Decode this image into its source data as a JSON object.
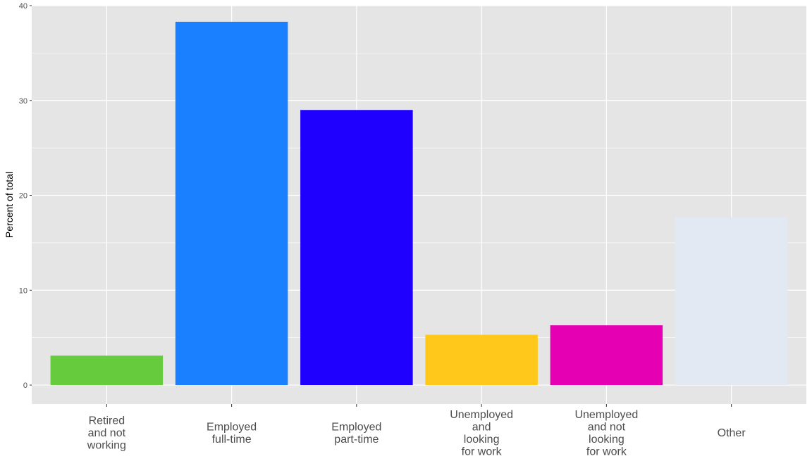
{
  "chart_data": {
    "type": "bar",
    "categories": [
      "Retired and not working",
      "Employed full-time",
      "Employed part-time",
      "Unemployed and looking for work",
      "Unemployed and not looking for work",
      "Other"
    ],
    "category_label_lines": [
      [
        "Retired",
        "and not",
        "working"
      ],
      [
        "Employed",
        "full-time"
      ],
      [
        "Employed",
        "part-time"
      ],
      [
        "Unemployed",
        "and",
        "looking",
        "for work"
      ],
      [
        "Unemployed",
        "and not",
        "looking",
        "for work"
      ],
      [
        "Other"
      ]
    ],
    "values": [
      3.1,
      38.3,
      29.0,
      5.3,
      6.3,
      17.7
    ],
    "colors": [
      "#66CC3D",
      "#1A80FF",
      "#1F00FF",
      "#FFC81A",
      "#E600B3",
      "#E3E9F3"
    ],
    "title": "",
    "xlabel": "",
    "ylabel": "Percent of total",
    "ylim": [
      -2,
      40
    ],
    "yticks": [
      0,
      10,
      20,
      30,
      40
    ],
    "grid": true,
    "panel_background": "#E5E5E5",
    "grid_color": "#FFFFFF"
  }
}
